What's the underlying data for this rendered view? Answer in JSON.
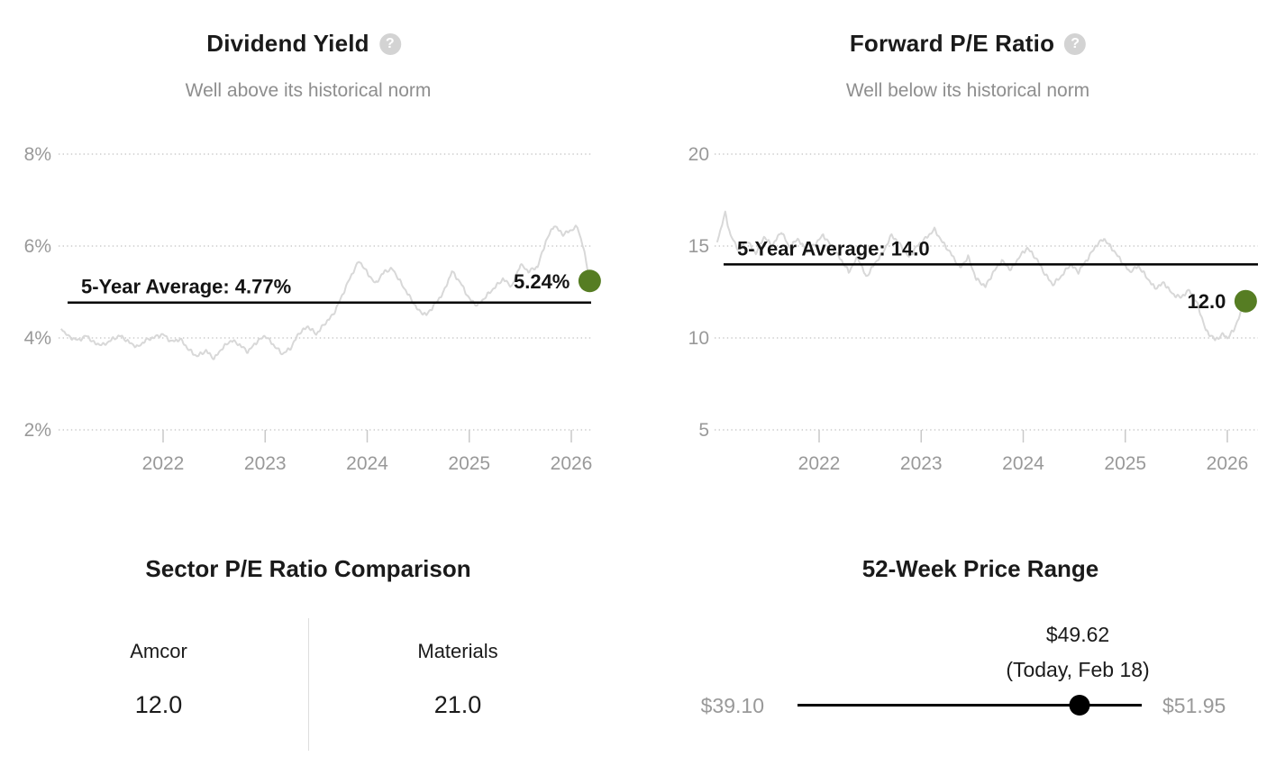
{
  "icons": {
    "help_glyph": "?"
  },
  "colors": {
    "accent_green": "#567d23",
    "series_line": "#d8d8d8",
    "gridline": "#cccccc",
    "axis_text": "#999999",
    "title_text": "#1a1a1a",
    "subtitle_text": "#8e8e8e",
    "average_line": "#000000",
    "range_track": "#000000"
  },
  "chart_data": [
    {
      "type": "line",
      "title": "Dividend Yield",
      "subtitle": "Well above its historical norm",
      "unit": "%",
      "grid": true,
      "xlim": [
        2021.0,
        2026.2
      ],
      "ylim": [
        2,
        8
      ],
      "xticks": [
        {
          "value": 2022,
          "label": "2022"
        },
        {
          "value": 2023,
          "label": "2023"
        },
        {
          "value": 2024,
          "label": "2024"
        },
        {
          "value": 2025,
          "label": "2025"
        },
        {
          "value": 2026,
          "label": "2026"
        }
      ],
      "yticks": [
        {
          "value": 8,
          "label": "8%"
        },
        {
          "value": 6,
          "label": "6%"
        },
        {
          "value": 4,
          "label": "4%"
        },
        {
          "value": 2,
          "label": "2%"
        }
      ],
      "average": {
        "value": 4.77,
        "label": "5-Year Average: 4.77%"
      },
      "current": {
        "value": 5.24,
        "label": "5.24%",
        "x": 2026.18
      },
      "series": {
        "x": [
          2021.0,
          2021.08,
          2021.17,
          2021.25,
          2021.33,
          2021.42,
          2021.5,
          2021.58,
          2021.67,
          2021.75,
          2021.83,
          2021.92,
          2022.0,
          2022.08,
          2022.17,
          2022.25,
          2022.33,
          2022.42,
          2022.5,
          2022.58,
          2022.67,
          2022.75,
          2022.83,
          2022.92,
          2023.0,
          2023.08,
          2023.17,
          2023.25,
          2023.33,
          2023.42,
          2023.5,
          2023.58,
          2023.67,
          2023.75,
          2023.83,
          2023.92,
          2024.0,
          2024.08,
          2024.17,
          2024.25,
          2024.33,
          2024.42,
          2024.5,
          2024.58,
          2024.67,
          2024.75,
          2024.83,
          2024.92,
          2025.0,
          2025.08,
          2025.17,
          2025.25,
          2025.33,
          2025.42,
          2025.5,
          2025.58,
          2025.67,
          2025.75,
          2025.83,
          2025.92,
          2026.0,
          2026.06,
          2026.12,
          2026.18
        ],
        "y": [
          4.2,
          4.02,
          3.95,
          4.05,
          3.88,
          3.85,
          3.97,
          4.05,
          3.9,
          3.8,
          3.95,
          4.02,
          4.08,
          3.92,
          3.97,
          3.75,
          3.6,
          3.72,
          3.55,
          3.78,
          3.95,
          3.85,
          3.7,
          3.92,
          4.05,
          3.85,
          3.65,
          3.78,
          4.1,
          4.25,
          4.08,
          4.3,
          4.52,
          4.9,
          5.3,
          5.68,
          5.42,
          5.18,
          5.45,
          5.5,
          5.2,
          4.88,
          4.6,
          4.5,
          4.75,
          5.0,
          5.45,
          5.18,
          4.85,
          4.7,
          4.92,
          5.1,
          5.28,
          5.12,
          5.6,
          5.45,
          5.55,
          6.1,
          6.45,
          6.25,
          6.35,
          6.42,
          5.95,
          5.24
        ]
      }
    },
    {
      "type": "line",
      "title": "Forward P/E Ratio",
      "subtitle": "Well below its historical norm",
      "unit": "",
      "grid": true,
      "xlim": [
        2021.0,
        2026.2
      ],
      "ylim": [
        5,
        20
      ],
      "xticks": [
        {
          "value": 2022,
          "label": "2022"
        },
        {
          "value": 2023,
          "label": "2023"
        },
        {
          "value": 2024,
          "label": "2024"
        },
        {
          "value": 2025,
          "label": "2025"
        },
        {
          "value": 2026,
          "label": "2026"
        }
      ],
      "yticks": [
        {
          "value": 20,
          "label": "20"
        },
        {
          "value": 15,
          "label": "15"
        },
        {
          "value": 10,
          "label": "10"
        },
        {
          "value": 5,
          "label": "5"
        }
      ],
      "average": {
        "value": 14.0,
        "label": "5-Year Average: 14.0"
      },
      "current": {
        "value": 12.0,
        "label": "12.0",
        "x": 2026.18
      },
      "series": {
        "x": [
          2021.0,
          2021.04,
          2021.08,
          2021.13,
          2021.21,
          2021.29,
          2021.38,
          2021.46,
          2021.54,
          2021.63,
          2021.71,
          2021.79,
          2021.88,
          2021.96,
          2022.04,
          2022.13,
          2022.21,
          2022.29,
          2022.38,
          2022.46,
          2022.54,
          2022.63,
          2022.71,
          2022.79,
          2022.88,
          2022.96,
          2023.04,
          2023.13,
          2023.21,
          2023.29,
          2023.38,
          2023.46,
          2023.54,
          2023.63,
          2023.71,
          2023.79,
          2023.88,
          2023.96,
          2024.04,
          2024.13,
          2024.21,
          2024.29,
          2024.38,
          2024.46,
          2024.54,
          2024.63,
          2024.71,
          2024.79,
          2024.88,
          2024.96,
          2025.04,
          2025.13,
          2025.21,
          2025.29,
          2025.38,
          2025.46,
          2025.54,
          2025.63,
          2025.71,
          2025.79,
          2025.88,
          2025.96,
          2026.0,
          2026.06,
          2026.12,
          2026.18
        ],
        "y": [
          15.2,
          16.0,
          16.8,
          15.6,
          14.8,
          15.3,
          14.6,
          15.5,
          15.0,
          15.8,
          14.9,
          15.4,
          14.7,
          15.1,
          15.6,
          14.9,
          14.3,
          13.6,
          14.4,
          13.3,
          14.0,
          14.7,
          15.6,
          15.1,
          14.4,
          15.0,
          15.4,
          15.9,
          15.2,
          14.6,
          13.8,
          14.4,
          13.2,
          12.8,
          13.6,
          14.2,
          13.7,
          14.4,
          14.9,
          14.3,
          13.5,
          12.9,
          13.4,
          14.0,
          13.6,
          14.3,
          15.0,
          15.4,
          14.8,
          14.2,
          13.6,
          13.9,
          13.3,
          12.7,
          13.0,
          12.4,
          12.2,
          12.6,
          11.8,
          10.4,
          9.9,
          10.2,
          10.0,
          10.4,
          11.2,
          12.0
        ]
      }
    },
    {
      "type": "table",
      "title": "Sector P/E Ratio Comparison",
      "columns": [
        {
          "label": "Amcor",
          "value": "12.0"
        },
        {
          "label": "Materials",
          "value": "21.0"
        }
      ]
    },
    {
      "type": "range",
      "title": "52-Week Price Range",
      "min": 39.1,
      "max": 51.95,
      "current": 49.62,
      "min_label": "$39.10",
      "max_label": "$51.95",
      "current_label": "$49.62",
      "current_sublabel": "(Today, Feb 18)"
    }
  ]
}
